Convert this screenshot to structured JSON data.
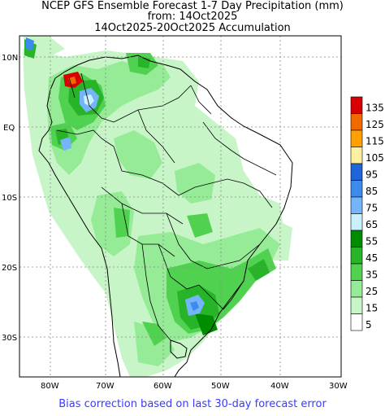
{
  "title": {
    "line1": "NCEP GFS Ensemble Forecast 1-7 Day Precipitation (mm)",
    "line2": "from: 14Oct2025",
    "line3": "14Oct2025-20Oct2025 Accumulation"
  },
  "footer": "Bias correction based on last 30-day forecast error",
  "axes": {
    "lat_labels": [
      "10N",
      "EQ",
      "10S",
      "20S",
      "30S"
    ],
    "lon_labels": [
      "80W",
      "70W",
      "60W",
      "50W",
      "40W",
      "30W"
    ]
  },
  "legend": {
    "levels": [
      "135",
      "125",
      "115",
      "105",
      "95",
      "85",
      "75",
      "65",
      "55",
      "45",
      "35",
      "25",
      "15",
      "5"
    ],
    "colors": [
      "#d90000",
      "#f06a00",
      "#ffa000",
      "#fff0a0",
      "#1f64d8",
      "#3c8cf0",
      "#76b4fa",
      "#c8f0ff",
      "#008c00",
      "#28b428",
      "#50d250",
      "#96eb96",
      "#c8f5c8",
      "#ffffff"
    ]
  },
  "colors": {
    "precip_light": "#c8f5c8",
    "precip_mid": "#96eb96",
    "precip_heavy": "#50d250",
    "precip_dark": "#28b428",
    "precip_blue": "#76b4fa",
    "precip_red": "#d90000",
    "footer_text": "#3a3aff"
  }
}
